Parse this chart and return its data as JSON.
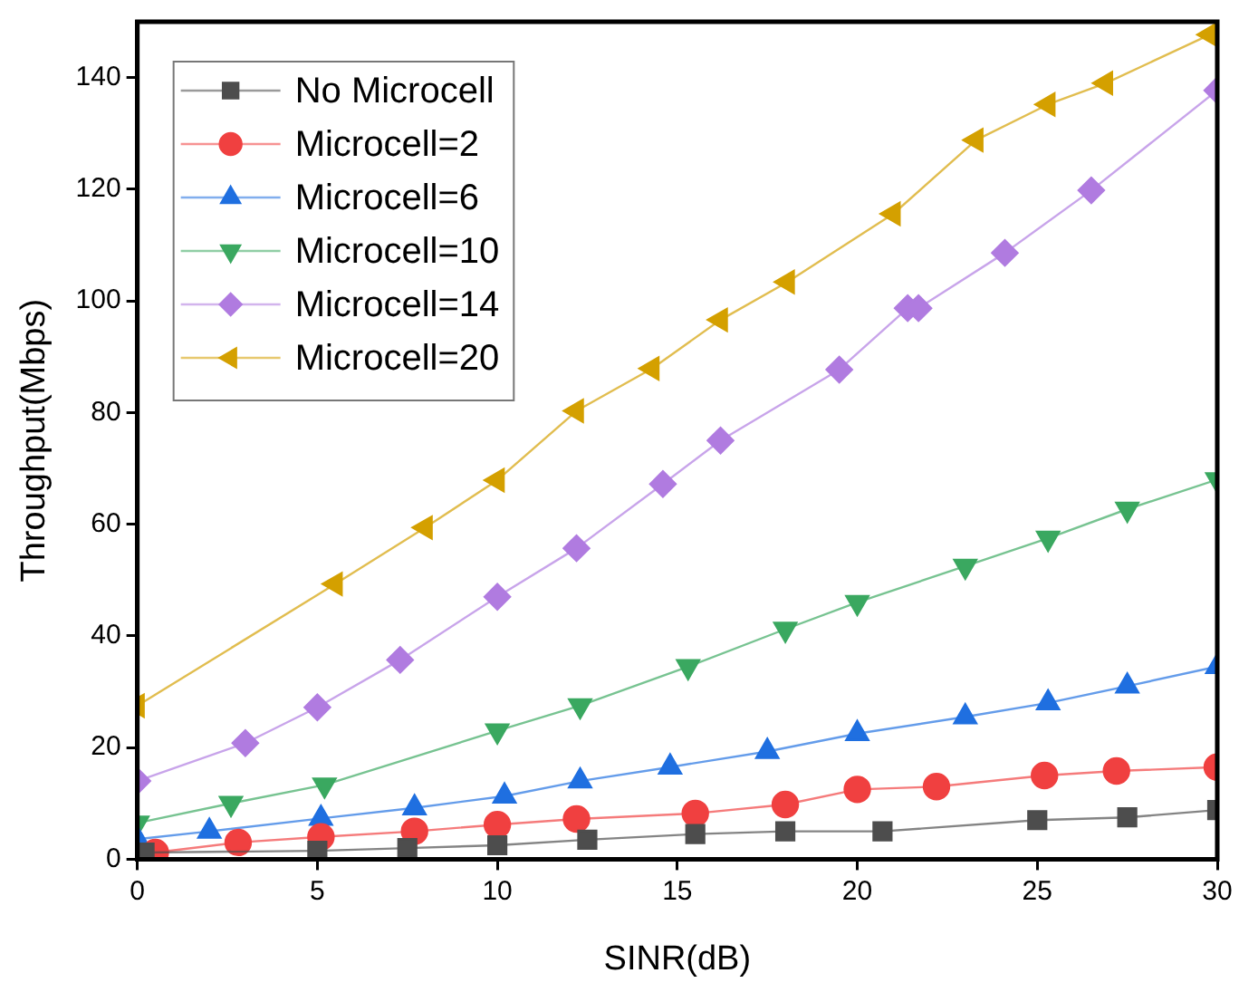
{
  "chart_data": {
    "type": "line",
    "xlabel": "SINR(dB)",
    "ylabel": "Throughput(Mbps)",
    "xlim": [
      0,
      30
    ],
    "xticks": [
      0,
      5,
      10,
      15,
      20,
      25,
      30
    ],
    "ylim": [
      0,
      150
    ],
    "yticks": [
      0,
      20,
      40,
      60,
      80,
      100,
      120,
      140
    ],
    "grid": false,
    "legend": "top left",
    "line_style": "solid",
    "series": [
      {
        "name": "No Microcell",
        "color": "#4d4d4d",
        "marker": "square",
        "x": [
          0.2,
          5,
          7.5,
          10,
          12.5,
          15.5,
          18,
          20.7,
          25,
          27.5,
          30
        ],
        "values": [
          1.2,
          1.5,
          2,
          2.5,
          3.5,
          4.5,
          5,
          5,
          7,
          7.5,
          8.8
        ]
      },
      {
        "name": "Microcell=2",
        "color": "#f04040",
        "marker": "circle",
        "x": [
          0.5,
          2.8,
          5.1,
          7.7,
          10,
          12.2,
          15.5,
          18,
          20,
          22.2,
          25.2,
          27.2,
          30
        ],
        "values": [
          1.2,
          3,
          4,
          5,
          6.2,
          7.2,
          8.2,
          9.8,
          12.5,
          13,
          15,
          15.8,
          16.5
        ]
      },
      {
        "name": "Microcell=6",
        "color": "#1f6fe0",
        "marker": "triangle",
        "x": [
          0,
          2,
          5.1,
          7.7,
          10.2,
          12.3,
          14.8,
          17.5,
          20,
          23,
          25.3,
          27.5,
          30
        ],
        "values": [
          3.6,
          5,
          7.3,
          9.2,
          11.3,
          14,
          16.5,
          19.3,
          22.5,
          25.5,
          28,
          31,
          34.5
        ]
      },
      {
        "name": "Microcell=10",
        "color": "#3aa860",
        "marker": "triangle-down",
        "x": [
          0,
          2.6,
          5.2,
          10,
          12.3,
          15.3,
          18,
          20,
          23,
          25.3,
          27.5,
          30
        ],
        "values": [
          6.5,
          10,
          13.3,
          23,
          27.5,
          34.5,
          41.2,
          46,
          52.5,
          57.5,
          62.7,
          68
        ]
      },
      {
        "name": "Microcell=14",
        "color": "#b07be0",
        "marker": "diamond",
        "x": [
          0,
          3,
          5,
          7.3,
          10,
          12.2,
          14.6,
          16.2,
          19.5,
          21.4,
          21.7,
          24.1,
          26.5,
          30
        ],
        "values": [
          14,
          20.8,
          27.2,
          35.7,
          47,
          55.7,
          67.2,
          75,
          87.7,
          98.7,
          98.7,
          108.6,
          119.8,
          137.7
        ]
      },
      {
        "name": "Microcell=20",
        "color": "#d4a000",
        "marker": "triangle-left",
        "x": [
          0,
          5.5,
          8,
          10,
          12.2,
          14.3,
          16.2,
          18.06,
          21,
          23.3,
          25.3,
          26.9,
          29.8
        ],
        "values": [
          27.5,
          49.3,
          59.4,
          67.9,
          80.3,
          87.9,
          96.6,
          103.4,
          115.6,
          128.8,
          135.2,
          139,
          147.7
        ]
      }
    ]
  }
}
